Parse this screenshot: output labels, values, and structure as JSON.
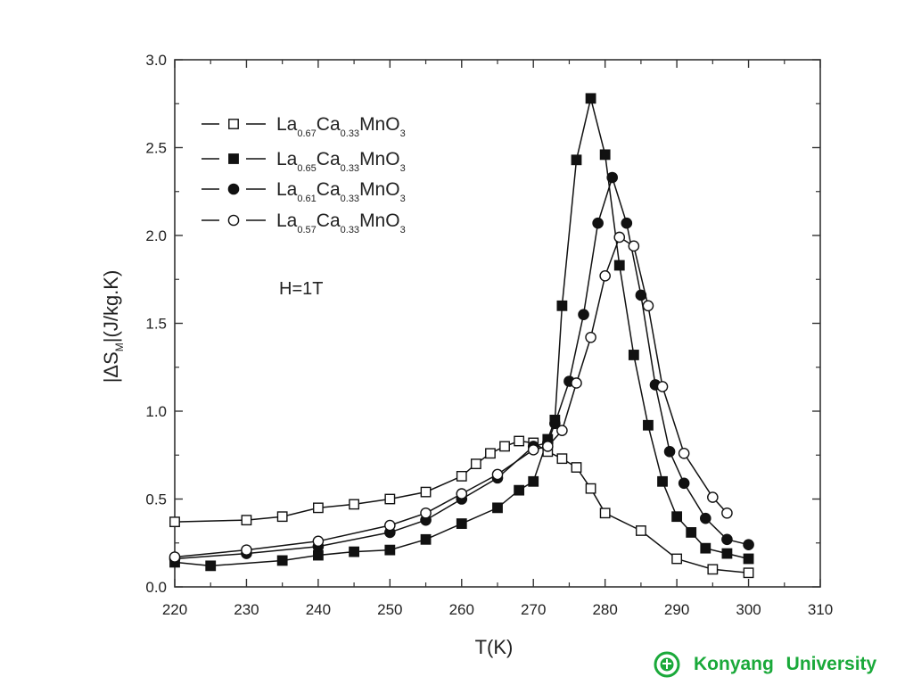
{
  "chart_data": {
    "type": "line",
    "title": "",
    "xlabel": "T(K)",
    "ylabel": "|ΔS",
    "ylabel_sub": "M",
    "ylabel_suffix": "|(J/kg.K)",
    "xlim": [
      220,
      310
    ],
    "ylim": [
      0.0,
      3.0
    ],
    "xticks": [
      "220",
      "230",
      "240",
      "250",
      "260",
      "270",
      "280",
      "290",
      "300",
      "310"
    ],
    "yticks": [
      "0.0",
      "0.5",
      "1.0",
      "1.5",
      "2.0",
      "2.5",
      "3.0"
    ],
    "annotation": "H=1T",
    "grid": false,
    "legend_position": "top-left",
    "series": [
      {
        "name_parts": [
          "La",
          "0.67",
          "Ca",
          "0.33",
          "MnO",
          "3"
        ],
        "marker": "square-open",
        "x": [
          220,
          230,
          235,
          240,
          245,
          250,
          255,
          260,
          262,
          264,
          266,
          268,
          270,
          272,
          274,
          276,
          278,
          280,
          285,
          290,
          295,
          300
        ],
        "y": [
          0.37,
          0.38,
          0.4,
          0.45,
          0.47,
          0.5,
          0.54,
          0.63,
          0.7,
          0.76,
          0.8,
          0.83,
          0.82,
          0.77,
          0.73,
          0.68,
          0.56,
          0.42,
          0.32,
          0.16,
          0.1,
          0.08
        ]
      },
      {
        "name_parts": [
          "La",
          "0.65",
          "Ca",
          "0.33",
          "MnO",
          "3"
        ],
        "marker": "square-filled",
        "x": [
          220,
          225,
          235,
          240,
          245,
          250,
          255,
          260,
          265,
          268,
          270,
          272,
          273,
          274,
          276,
          278,
          280,
          282,
          284,
          286,
          288,
          290,
          292,
          294,
          297,
          300
        ],
        "y": [
          0.14,
          0.12,
          0.15,
          0.18,
          0.2,
          0.21,
          0.27,
          0.36,
          0.45,
          0.55,
          0.6,
          0.84,
          0.95,
          1.6,
          2.43,
          2.78,
          2.46,
          1.83,
          1.32,
          0.92,
          0.6,
          0.4,
          0.31,
          0.22,
          0.19,
          0.16
        ]
      },
      {
        "name_parts": [
          "La",
          "0.61",
          "Ca",
          "0.33",
          "MnO",
          "3"
        ],
        "marker": "circle-filled",
        "x": [
          220,
          230,
          240,
          250,
          255,
          260,
          265,
          270,
          272,
          273,
          275,
          277,
          279,
          281,
          283,
          285,
          287,
          289,
          291,
          294,
          297,
          300
        ],
        "y": [
          0.16,
          0.19,
          0.23,
          0.31,
          0.38,
          0.5,
          0.62,
          0.8,
          0.82,
          0.93,
          1.17,
          1.55,
          2.07,
          2.33,
          2.07,
          1.66,
          1.15,
          0.77,
          0.59,
          0.39,
          0.27,
          0.24
        ]
      },
      {
        "name_parts": [
          "La",
          "0.57",
          "Ca",
          "0.33",
          "MnO",
          "3"
        ],
        "marker": "circle-open",
        "x": [
          220,
          230,
          240,
          250,
          255,
          260,
          265,
          270,
          272,
          274,
          276,
          278,
          280,
          282,
          284,
          286,
          288,
          291,
          295,
          297
        ],
        "y": [
          0.17,
          0.21,
          0.26,
          0.35,
          0.42,
          0.53,
          0.64,
          0.78,
          0.8,
          0.89,
          1.16,
          1.42,
          1.77,
          1.99,
          1.94,
          1.6,
          1.14,
          0.76,
          0.51,
          0.42
        ]
      }
    ]
  },
  "footer": {
    "logo": "university-seal-icon",
    "text": "Konyang  University",
    "color": "#1aa93a"
  }
}
